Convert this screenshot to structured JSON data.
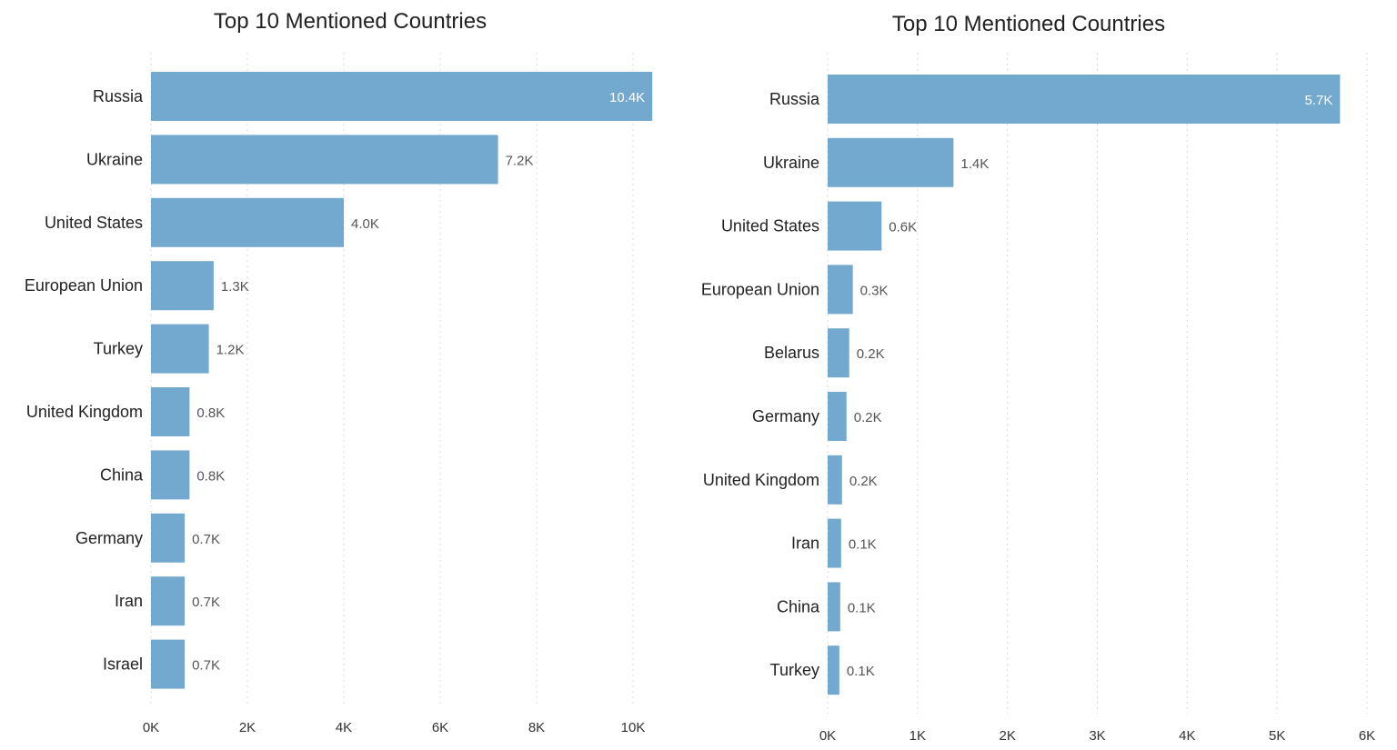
{
  "chart_data": [
    {
      "type": "bar",
      "orientation": "horizontal",
      "title": "Top 10 Mentioned Countries",
      "categories": [
        "Russia",
        "Ukraine",
        "United States",
        "European Union",
        "Turkey",
        "United Kingdom",
        "China",
        "Germany",
        "Iran",
        "Israel"
      ],
      "values": [
        10.4,
        7.2,
        4.0,
        1.3,
        1.2,
        0.8,
        0.8,
        0.7,
        0.7,
        0.7
      ],
      "value_labels": [
        "10.4K",
        "7.2K",
        "4.0K",
        "1.3K",
        "1.2K",
        "0.8K",
        "0.8K",
        "0.7K",
        "0.7K",
        "0.7K"
      ],
      "unit": "thousands",
      "xlim": [
        0,
        11
      ],
      "xticks": [
        0,
        2,
        4,
        6,
        8,
        10
      ],
      "xtick_labels": [
        "0K",
        "2K",
        "4K",
        "6K",
        "8K",
        "10K"
      ],
      "grid": true,
      "bar_color": "#74a9cf"
    },
    {
      "type": "bar",
      "orientation": "horizontal",
      "title": "Top 10 Mentioned Countries",
      "categories": [
        "Russia",
        "Ukraine",
        "United States",
        "European Union",
        "Belarus",
        "Germany",
        "United Kingdom",
        "Iran",
        "China",
        "Turkey"
      ],
      "values": [
        5.7,
        1.4,
        0.6,
        0.28,
        0.24,
        0.21,
        0.16,
        0.15,
        0.14,
        0.13
      ],
      "value_labels": [
        "5.7K",
        "1.4K",
        "0.6K",
        "0.3K",
        "0.2K",
        "0.2K",
        "0.2K",
        "0.1K",
        "0.1K",
        "0.1K"
      ],
      "unit": "thousands",
      "xlim": [
        0,
        6
      ],
      "xticks": [
        0,
        1,
        2,
        3,
        4,
        5,
        6
      ],
      "xtick_labels": [
        "0K",
        "1K",
        "2K",
        "3K",
        "4K",
        "5K",
        "6K"
      ],
      "grid": true,
      "bar_color": "#74a9cf"
    }
  ]
}
